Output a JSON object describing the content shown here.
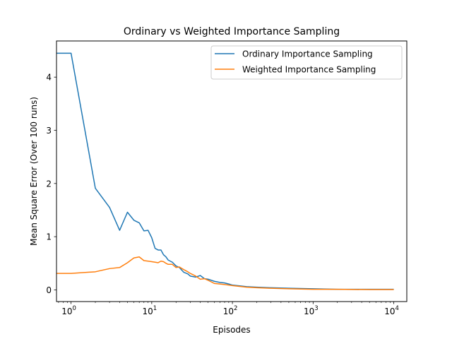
{
  "chart_data": {
    "type": "line",
    "title": "Ordinary vs Weighted Importance Sampling",
    "xlabel": "Episodes",
    "ylabel": "Mean Square Error (Over 100 runs)",
    "xscale": "log",
    "xlim": [
      0.66,
      14500
    ],
    "ylim": [
      -0.22,
      4.68
    ],
    "grid": false,
    "legend_position": "top-right",
    "x_ticks": [
      {
        "value": 1,
        "base": "10",
        "exp": "0"
      },
      {
        "value": 10,
        "base": "10",
        "exp": "1"
      },
      {
        "value": 100,
        "base": "10",
        "exp": "2"
      },
      {
        "value": 1000,
        "base": "10",
        "exp": "3"
      },
      {
        "value": 10000,
        "base": "10",
        "exp": "4"
      }
    ],
    "y_ticks": [
      {
        "value": 0,
        "label": "0"
      },
      {
        "value": 1,
        "label": "1"
      },
      {
        "value": 2,
        "label": "2"
      },
      {
        "value": 3,
        "label": "3"
      },
      {
        "value": 4,
        "label": "4"
      }
    ],
    "series": [
      {
        "name": "Ordinary Importance Sampling",
        "color": "#1f77b4",
        "x": [
          0.66,
          1,
          2,
          3,
          4,
          5,
          6,
          7,
          8,
          9,
          10,
          11,
          12,
          13,
          14,
          15,
          16,
          18,
          20,
          22,
          25,
          28,
          30,
          35,
          40,
          45,
          50,
          60,
          70,
          80,
          90,
          100,
          150,
          200,
          300,
          500,
          1000,
          2000,
          5000,
          10000
        ],
        "y": [
          4.45,
          4.45,
          1.91,
          1.55,
          1.12,
          1.46,
          1.31,
          1.26,
          1.11,
          1.12,
          0.98,
          0.78,
          0.75,
          0.75,
          0.66,
          0.62,
          0.56,
          0.52,
          0.45,
          0.42,
          0.33,
          0.3,
          0.26,
          0.24,
          0.27,
          0.21,
          0.2,
          0.16,
          0.14,
          0.13,
          0.11,
          0.09,
          0.06,
          0.05,
          0.04,
          0.03,
          0.02,
          0.01,
          0.01,
          0.01
        ]
      },
      {
        "name": "Weighted Importance Sampling",
        "color": "#ff7f0e",
        "x": [
          0.66,
          1,
          2,
          3,
          4,
          5,
          6,
          7,
          8,
          9,
          10,
          11,
          12,
          13,
          14,
          15,
          16,
          18,
          20,
          22,
          25,
          28,
          30,
          35,
          40,
          45,
          50,
          60,
          70,
          80,
          90,
          100,
          150,
          200,
          300,
          500,
          1000,
          2000,
          5000,
          10000
        ],
        "y": [
          0.31,
          0.31,
          0.34,
          0.4,
          0.42,
          0.51,
          0.6,
          0.62,
          0.55,
          0.54,
          0.53,
          0.52,
          0.51,
          0.54,
          0.53,
          0.5,
          0.48,
          0.48,
          0.42,
          0.43,
          0.38,
          0.34,
          0.31,
          0.26,
          0.2,
          0.21,
          0.18,
          0.12,
          0.11,
          0.1,
          0.09,
          0.08,
          0.05,
          0.04,
          0.03,
          0.02,
          0.01,
          0.01,
          0.005,
          0.005
        ]
      }
    ]
  }
}
